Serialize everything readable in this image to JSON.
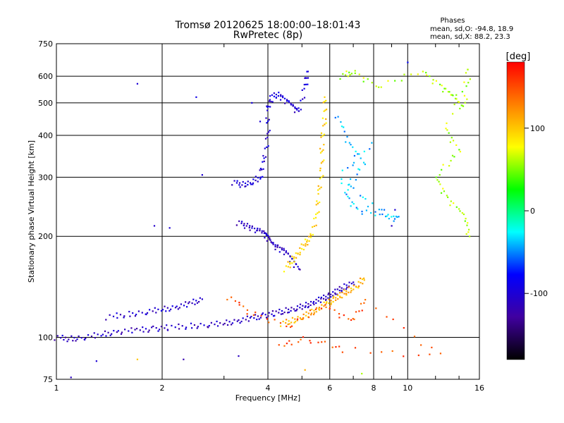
{
  "chart_data": {
    "type": "scatter",
    "title": "Tromsø 20120625 18:00:00–18:01:43",
    "subtitle": "RwPretec (8p)",
    "xlabel": "Frequency [MHz]",
    "ylabel": "Stationary phase Virtual Height [km]",
    "x_scale": "log",
    "y_scale": "log",
    "xlim": [
      1,
      16
    ],
    "ylim": [
      75,
      750
    ],
    "x_ticks": [
      1,
      2,
      4,
      6,
      8,
      10,
      16
    ],
    "y_ticks": [
      75,
      100,
      200,
      300,
      400,
      500,
      600,
      750
    ],
    "grid": true,
    "stats": {
      "heading": "Phases",
      "line_o": "mean, sd,O: -94.8, 18.9",
      "line_x": "mean, sd,X:  88.2, 23.3"
    },
    "colorbar": {
      "label": "[deg]",
      "range": [
        -180,
        180
      ],
      "ticks": [
        100,
        0,
        -100
      ],
      "colors": [
        "#ff0000",
        "#ff8000",
        "#ffff00",
        "#00ff00",
        "#00ffff",
        "#0000ff",
        "#4000a0",
        "#000000"
      ]
    },
    "traces": [
      {
        "name": "",
        "phase": -110,
        "points": [
          [
            1.0,
            100
          ],
          [
            1.1,
            99
          ],
          [
            1.2,
            100
          ],
          [
            1.35,
            102
          ],
          [
            1.5,
            104
          ],
          [
            1.7,
            105
          ],
          [
            1.9,
            106
          ],
          [
            2.1,
            107
          ],
          [
            2.4,
            108
          ],
          [
            2.7,
            109
          ],
          [
            3.0,
            110
          ],
          [
            3.3,
            112
          ],
          [
            3.6,
            114
          ],
          [
            3.9,
            116
          ],
          [
            4.2,
            118
          ],
          [
            4.5,
            120
          ],
          [
            4.8,
            122
          ],
          [
            5.1,
            124
          ],
          [
            5.4,
            127
          ],
          [
            5.7,
            130
          ],
          [
            6.0,
            133
          ],
          [
            6.3,
            137
          ],
          [
            6.6,
            141
          ],
          [
            7.0,
            146
          ]
        ]
      },
      {
        "name": "",
        "phase": -105,
        "points": [
          [
            1.4,
            115
          ],
          [
            1.6,
            117
          ],
          [
            1.8,
            119
          ],
          [
            2.0,
            121
          ],
          [
            2.2,
            123
          ],
          [
            2.4,
            126
          ],
          [
            2.6,
            130
          ]
        ]
      },
      {
        "name": "",
        "phase": -100,
        "points": [
          [
            3.2,
            290
          ],
          [
            3.4,
            285
          ],
          [
            3.6,
            290
          ],
          [
            3.8,
            300
          ],
          [
            3.9,
            340
          ],
          [
            4.0,
            400
          ],
          [
            4.0,
            480
          ],
          [
            4.1,
            520
          ],
          [
            4.3,
            530
          ],
          [
            4.5,
            510
          ],
          [
            4.7,
            490
          ],
          [
            4.9,
            470
          ],
          [
            5.1,
            560
          ],
          [
            5.2,
            620
          ]
        ]
      },
      {
        "name": "",
        "phase": -110,
        "points": [
          [
            3.3,
            220
          ],
          [
            3.5,
            215
          ],
          [
            3.7,
            210
          ],
          [
            3.9,
            205
          ],
          [
            4.0,
            200
          ],
          [
            4.1,
            190
          ],
          [
            4.3,
            185
          ],
          [
            4.5,
            180
          ],
          [
            4.7,
            170
          ],
          [
            4.9,
            160
          ]
        ]
      },
      {
        "name": "",
        "phase": 110,
        "points": [
          [
            4.4,
            110
          ],
          [
            4.7,
            112
          ],
          [
            5.0,
            115
          ],
          [
            5.3,
            118
          ],
          [
            5.6,
            122
          ],
          [
            5.9,
            126
          ],
          [
            6.2,
            130
          ],
          [
            6.5,
            134
          ],
          [
            6.8,
            138
          ],
          [
            7.2,
            143
          ],
          [
            7.5,
            150
          ]
        ]
      },
      {
        "name": "",
        "phase": 95,
        "points": [
          [
            4.5,
            160
          ],
          [
            4.7,
            170
          ],
          [
            4.9,
            180
          ],
          [
            5.1,
            190
          ],
          [
            5.3,
            200
          ],
          [
            5.5,
            230
          ],
          [
            5.6,
            270
          ],
          [
            5.7,
            320
          ],
          [
            5.7,
            380
          ],
          [
            5.8,
            450
          ],
          [
            5.8,
            520
          ]
        ]
      },
      {
        "name": "",
        "phase": 60,
        "points": [
          [
            6.5,
            600
          ],
          [
            7.0,
            620
          ],
          [
            8.2,
            560
          ],
          [
            11.0,
            620
          ],
          [
            12.5,
            560
          ],
          [
            13.5,
            520
          ],
          [
            14.5,
            480
          ],
          [
            15.0,
            640
          ],
          [
            12.8,
            420
          ],
          [
            14.0,
            360
          ],
          [
            12.0,
            300
          ],
          [
            13.0,
            260
          ],
          [
            14.5,
            230
          ],
          [
            15.0,
            200
          ]
        ]
      },
      {
        "name": "",
        "phase": -40,
        "points": [
          [
            6.3,
            460
          ],
          [
            6.8,
            380
          ],
          [
            7.5,
            330
          ],
          [
            6.6,
            270
          ],
          [
            7.2,
            240
          ],
          [
            8.5,
            230
          ],
          [
            9.5,
            225
          ],
          [
            7.8,
            250
          ],
          [
            6.4,
            300
          ],
          [
            7.9,
            380
          ]
        ]
      },
      {
        "name": "",
        "phase": 150,
        "points": [
          [
            3.1,
            132
          ],
          [
            3.6,
            118
          ],
          [
            4.6,
            108
          ],
          [
            5.8,
            125
          ],
          [
            6.9,
            112
          ],
          [
            7.6,
            128
          ],
          [
            12.5,
            88
          ],
          [
            6.6,
            92
          ],
          [
            5.2,
            99
          ],
          [
            4.3,
            95
          ]
        ]
      }
    ],
    "scatter": [
      {
        "x": 1.7,
        "y": 570,
        "phase": -100
      },
      {
        "x": 2.5,
        "y": 520,
        "phase": -90
      },
      {
        "x": 2.6,
        "y": 305,
        "phase": -100
      },
      {
        "x": 1.9,
        "y": 215,
        "phase": -105
      },
      {
        "x": 2.1,
        "y": 212,
        "phase": -100
      },
      {
        "x": 10.0,
        "y": 660,
        "phase": -80
      },
      {
        "x": 9.2,
        "y": 240,
        "phase": -100
      },
      {
        "x": 9.0,
        "y": 215,
        "phase": -110
      },
      {
        "x": 1.3,
        "y": 85,
        "phase": -100
      },
      {
        "x": 1.1,
        "y": 76,
        "phase": -110
      },
      {
        "x": 2.3,
        "y": 86,
        "phase": -120
      },
      {
        "x": 3.3,
        "y": 88,
        "phase": -110
      },
      {
        "x": 5.1,
        "y": 80,
        "phase": 110
      },
      {
        "x": 7.4,
        "y": 78,
        "phase": 60
      },
      {
        "x": 1.7,
        "y": 86,
        "phase": 100
      },
      {
        "x": 3.6,
        "y": 500,
        "phase": -95
      },
      {
        "x": 3.8,
        "y": 440,
        "phase": -100
      }
    ]
  }
}
